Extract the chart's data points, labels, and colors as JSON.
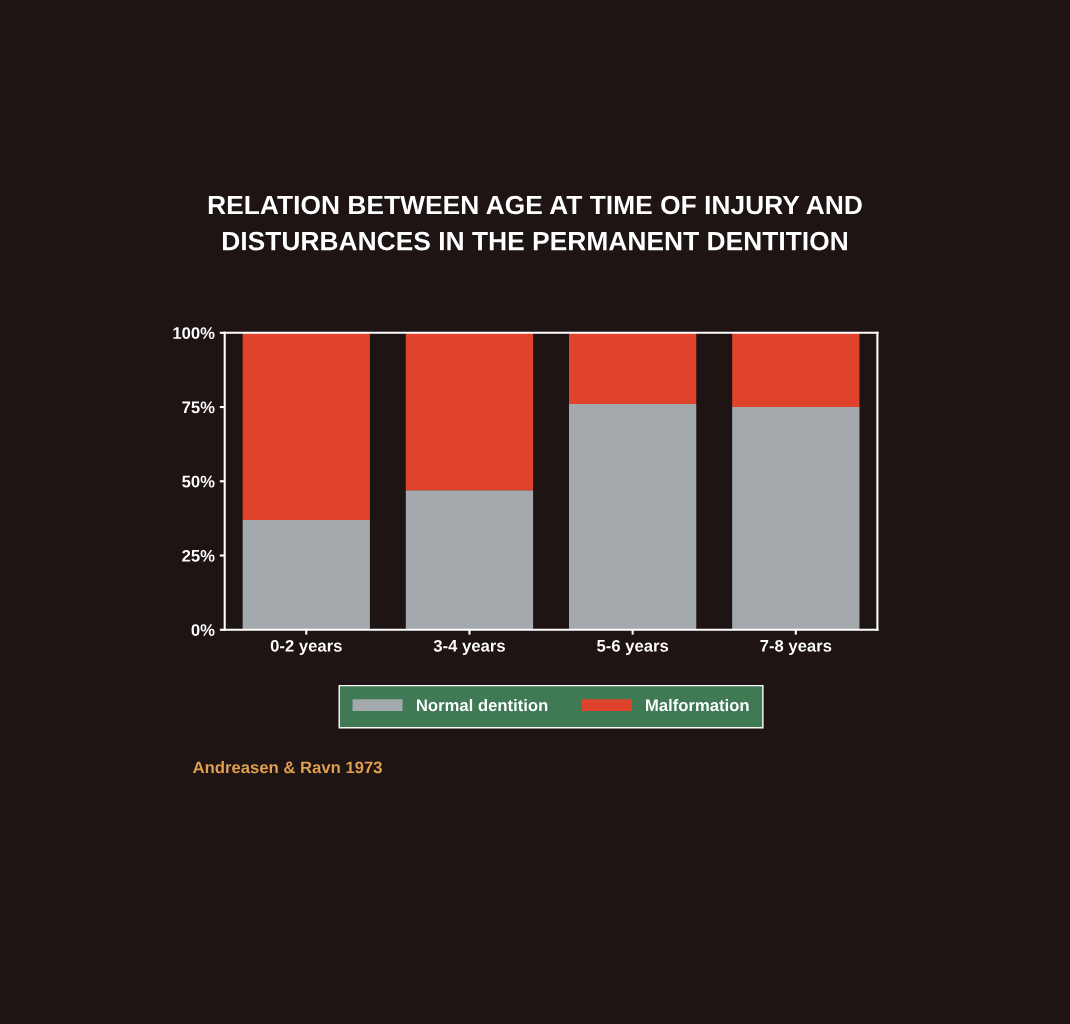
{
  "chart_data": {
    "type": "bar",
    "stacked": true,
    "title": "RELATION BETWEEN AGE AT TIME OF INJURY AND\nDISTURBANCES IN THE PERMANENT DENTITION",
    "categories": [
      "0-2 years",
      "3-4 years",
      "5-6 years",
      "7-8 years"
    ],
    "series": [
      {
        "name": "Normal dentition",
        "color": "#a3a9ad",
        "values": [
          37,
          47,
          76,
          75
        ]
      },
      {
        "name": "Malformation",
        "color": "#e0432c",
        "values": [
          63,
          53,
          24,
          25
        ]
      }
    ],
    "ylim": [
      0,
      100
    ],
    "yticks": [
      {
        "value": 0,
        "label": "0%"
      },
      {
        "value": 25,
        "label": "25%"
      },
      {
        "value": 50,
        "label": "50%"
      },
      {
        "value": 75,
        "label": "75%"
      },
      {
        "value": 100,
        "label": "100%"
      }
    ],
    "grid": false,
    "legend": "bottom",
    "annotations": [
      "Andreasen & Ravn 1973"
    ]
  }
}
